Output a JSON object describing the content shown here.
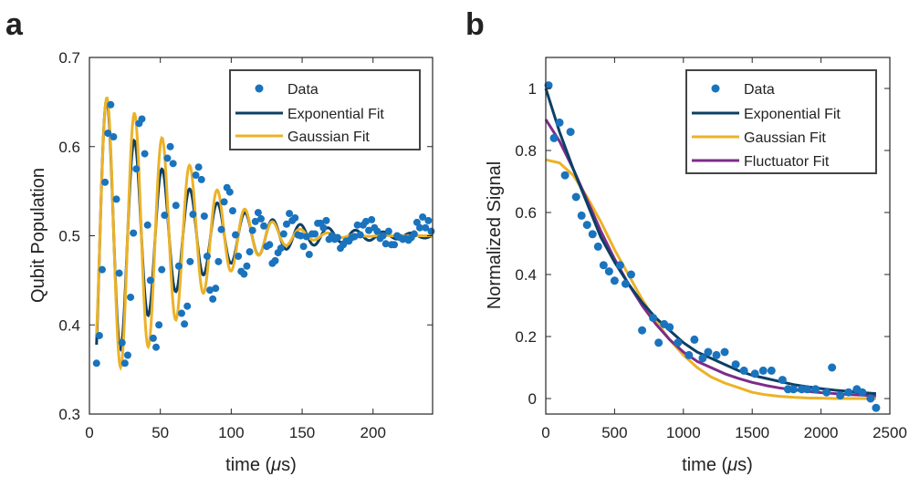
{
  "chart_data": [
    {
      "panel_label": "a",
      "type": "line",
      "xlabel": "time (μs)",
      "xlabel_parts": [
        "time (",
        "μ",
        "s)"
      ],
      "ylabel": "Qubit Population",
      "xlim": [
        0,
        242
      ],
      "ylim": [
        0.3,
        0.7
      ],
      "xticks": [
        0,
        50,
        100,
        150,
        200
      ],
      "yticks": [
        0.3,
        0.4,
        0.5,
        0.6,
        0.7
      ],
      "xtick_labels": [
        "0",
        "50",
        "100",
        "150",
        "200"
      ],
      "ytick_labels": [
        "0.3",
        "0.4",
        "0.5",
        "0.6",
        "0.7"
      ],
      "legend": {
        "position": "top-right",
        "entries": [
          "Data",
          "Exponential Fit",
          "Gaussian Fit"
        ]
      },
      "fits": {
        "exponential": {
          "label": "Exponential Fit",
          "offset": 0.5,
          "amplitude": 0.19,
          "tau": 55,
          "period": 19.5,
          "phase_time": 12.3
        },
        "gaussian": {
          "label": "Gaussian Fit",
          "offset": 0.5,
          "amplitude": 0.158,
          "tau": 85,
          "period": 19.5,
          "phase_time": 12.3
        }
      },
      "series": [
        {
          "name": "Data",
          "style": "markers",
          "x": [
            5,
            7,
            9,
            11,
            13,
            15,
            17,
            19,
            21,
            23,
            25,
            27,
            29,
            31,
            33,
            35,
            37,
            39,
            41,
            43,
            45,
            47,
            49,
            51,
            53,
            55,
            57,
            59,
            61,
            63,
            65,
            67,
            69,
            71,
            73,
            75,
            77,
            79,
            81,
            83,
            85,
            87,
            89,
            91,
            93,
            95,
            97,
            99,
            101,
            103,
            105,
            107,
            109,
            111,
            113,
            115,
            117,
            119,
            121,
            123,
            125,
            127,
            129,
            131,
            133,
            135,
            137,
            139,
            141,
            143,
            145,
            147,
            149,
            151,
            153,
            155,
            157,
            159,
            161,
            163,
            165,
            167,
            169,
            171,
            173,
            175,
            177,
            179,
            181,
            183,
            185,
            187,
            189,
            191,
            193,
            195,
            197,
            199,
            201,
            203,
            205,
            207,
            209,
            211,
            213,
            215,
            217,
            219,
            221,
            223,
            225,
            227,
            229,
            231,
            233,
            235,
            237,
            239,
            241
          ],
          "y": [
            0.357,
            0.388,
            0.462,
            0.56,
            0.615,
            0.647,
            0.611,
            0.541,
            0.458,
            0.38,
            0.357,
            0.366,
            0.431,
            0.503,
            0.575,
            0.626,
            0.631,
            0.592,
            0.512,
            0.45,
            0.385,
            0.375,
            0.4,
            0.462,
            0.523,
            0.587,
            0.6,
            0.581,
            0.534,
            0.466,
            0.413,
            0.401,
            0.421,
            0.471,
            0.524,
            0.568,
            0.577,
            0.563,
            0.522,
            0.477,
            0.439,
            0.429,
            0.441,
            0.471,
            0.507,
            0.538,
            0.554,
            0.549,
            0.528,
            0.501,
            0.477,
            0.46,
            0.457,
            0.466,
            0.482,
            0.506,
            0.516,
            0.526,
            0.519,
            0.511,
            0.488,
            0.49,
            0.469,
            0.472,
            0.481,
            0.486,
            0.502,
            0.513,
            0.525,
            0.517,
            0.52,
            0.501,
            0.5,
            0.488,
            0.499,
            0.479,
            0.502,
            0.502,
            0.514,
            0.514,
            0.509,
            0.517,
            0.496,
            0.5,
            0.496,
            0.498,
            0.486,
            0.49,
            0.494,
            0.494,
            0.498,
            0.499,
            0.512,
            0.501,
            0.512,
            0.516,
            0.506,
            0.518,
            0.509,
            0.505,
            0.497,
            0.5,
            0.491,
            0.505,
            0.49,
            0.49,
            0.5,
            0.498,
            0.496,
            0.497,
            0.495,
            0.498,
            0.502,
            0.515,
            0.509,
            0.521,
            0.509,
            0.517,
            0.505
          ]
        },
        {
          "name": "Exponential Fit",
          "style": "line",
          "color": "#0c3f66"
        },
        {
          "name": "Gaussian Fit",
          "style": "line",
          "color": "#ecb227"
        }
      ]
    },
    {
      "panel_label": "b",
      "type": "line",
      "xlabel": "time (μs)",
      "xlabel_parts": [
        "time (",
        "μ",
        "s)"
      ],
      "ylabel": "Normalized Signal",
      "xlim": [
        0,
        2500
      ],
      "ylim": [
        -0.05,
        1.1
      ],
      "xticks": [
        0,
        500,
        1000,
        1500,
        2000,
        2500
      ],
      "yticks": [
        0,
        0.2,
        0.4,
        0.6,
        0.8,
        1
      ],
      "xtick_labels": [
        "0",
        "500",
        "1000",
        "1500",
        "2000",
        "2500"
      ],
      "ytick_labels": [
        "0",
        "0.2",
        "0.4",
        "0.6",
        "0.8",
        "1"
      ],
      "legend": {
        "position": "top-right",
        "entries": [
          "Data",
          "Exponential Fit",
          "Gaussian Fit",
          "Fluctuator Fit"
        ]
      },
      "series": [
        {
          "name": "Data",
          "style": "markers",
          "x": [
            20,
            60,
            100,
            140,
            180,
            220,
            260,
            300,
            340,
            380,
            420,
            460,
            500,
            540,
            580,
            620,
            700,
            780,
            820,
            860,
            900,
            960,
            1040,
            1080,
            1140,
            1180,
            1240,
            1300,
            1380,
            1440,
            1520,
            1580,
            1640,
            1720,
            1760,
            1800,
            1860,
            1900,
            1960,
            2040,
            2080,
            2140,
            2200,
            2260,
            2300,
            2360,
            2400
          ],
          "y": [
            1.01,
            0.84,
            0.89,
            0.72,
            0.86,
            0.65,
            0.59,
            0.56,
            0.53,
            0.49,
            0.43,
            0.41,
            0.38,
            0.43,
            0.37,
            0.4,
            0.22,
            0.26,
            0.18,
            0.24,
            0.23,
            0.18,
            0.14,
            0.19,
            0.13,
            0.15,
            0.14,
            0.15,
            0.11,
            0.09,
            0.08,
            0.09,
            0.09,
            0.06,
            0.03,
            0.03,
            0.03,
            0.03,
            0.03,
            0.02,
            0.1,
            0.01,
            0.02,
            0.03,
            0.02,
            0.0,
            -0.03
          ]
        },
        {
          "name": "Exponential Fit",
          "style": "line",
          "color": "#0c3f66",
          "x": [
            0,
            100,
            200,
            300,
            400,
            500,
            600,
            700,
            800,
            900,
            1000,
            1100,
            1200,
            1300,
            1400,
            1500,
            1600,
            1700,
            1800,
            1900,
            2000,
            2100,
            2200,
            2300,
            2400
          ],
          "y": [
            1.0,
            0.86,
            0.74,
            0.63,
            0.52,
            0.44,
            0.37,
            0.31,
            0.26,
            0.22,
            0.18,
            0.15,
            0.13,
            0.11,
            0.09,
            0.075,
            0.065,
            0.055,
            0.045,
            0.038,
            0.032,
            0.027,
            0.023,
            0.019,
            0.016
          ]
        },
        {
          "name": "Gaussian Fit",
          "style": "line",
          "color": "#ecb227",
          "x": [
            0,
            100,
            200,
            300,
            400,
            500,
            600,
            700,
            800,
            900,
            1000,
            1100,
            1200,
            1300,
            1400,
            1500,
            1600,
            1700,
            1800,
            1900,
            2000,
            2100,
            2200,
            2300,
            2400
          ],
          "y": [
            0.77,
            0.76,
            0.72,
            0.65,
            0.57,
            0.48,
            0.4,
            0.32,
            0.25,
            0.19,
            0.14,
            0.1,
            0.07,
            0.05,
            0.035,
            0.02,
            0.012,
            0.007,
            0.004,
            0.002,
            0.001,
            0.0,
            0.0,
            0.0,
            0.0
          ]
        },
        {
          "name": "Fluctuator Fit",
          "style": "line",
          "color": "#7c2c8a",
          "x": [
            0,
            100,
            200,
            300,
            400,
            500,
            600,
            700,
            800,
            900,
            1000,
            1100,
            1200,
            1300,
            1400,
            1500,
            1600,
            1700,
            1800,
            1900,
            2000,
            2100,
            2200,
            2300,
            2400
          ],
          "y": [
            0.9,
            0.83,
            0.74,
            0.64,
            0.54,
            0.45,
            0.37,
            0.3,
            0.24,
            0.19,
            0.15,
            0.12,
            0.1,
            0.08,
            0.065,
            0.052,
            0.042,
            0.034,
            0.028,
            0.023,
            0.019,
            0.016,
            0.013,
            0.011,
            0.009
          ]
        }
      ]
    }
  ]
}
